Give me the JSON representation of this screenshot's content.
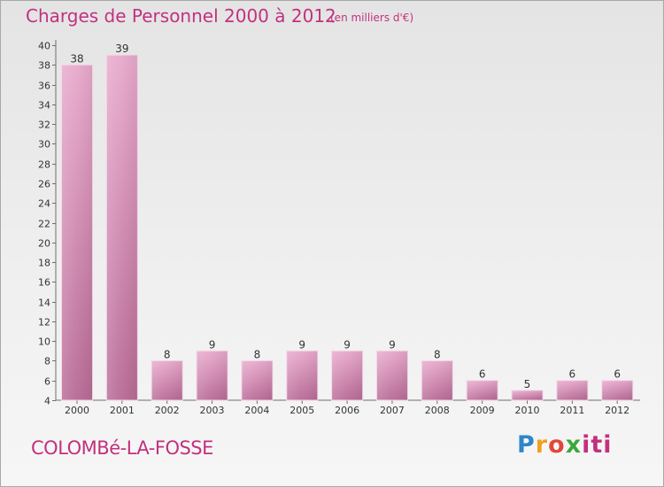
{
  "header": {
    "title": "Charges de Personnel 2000 à 2012",
    "subtitle": "(en milliers d'€)"
  },
  "footer": {
    "commune": "COLOMBé-LA-FOSSE",
    "logo_parts": [
      "P",
      "r",
      "o",
      "x",
      "iti"
    ]
  },
  "colors": {
    "accent": "#c2317e",
    "bar_top": "#e8a9cc",
    "bar_bottom": "#b86a96"
  },
  "chart_data": {
    "type": "bar",
    "title": "Charges de Personnel 2000 à 2012",
    "subtitle": "(en milliers d'€)",
    "categories": [
      "2000",
      "2001",
      "2002",
      "2003",
      "2004",
      "2005",
      "2006",
      "2007",
      "2008",
      "2009",
      "2010",
      "2011",
      "2012"
    ],
    "values": [
      38,
      39,
      8,
      9,
      8,
      9,
      9,
      9,
      8,
      6,
      5,
      6,
      6
    ],
    "ylim": [
      4,
      40
    ],
    "yticks": [
      4,
      6,
      8,
      10,
      12,
      14,
      16,
      18,
      20,
      22,
      24,
      26,
      28,
      30,
      32,
      34,
      36,
      38,
      40
    ],
    "xlabel": "",
    "ylabel": "",
    "grid": false,
    "legend": "none"
  }
}
